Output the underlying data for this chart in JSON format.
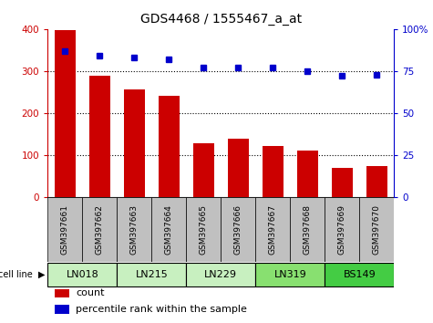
{
  "title": "GDS4468 / 1555467_a_at",
  "samples": [
    "GSM397661",
    "GSM397662",
    "GSM397663",
    "GSM397664",
    "GSM397665",
    "GSM397666",
    "GSM397667",
    "GSM397668",
    "GSM397669",
    "GSM397670"
  ],
  "counts": [
    398,
    288,
    257,
    240,
    128,
    138,
    122,
    110,
    70,
    73
  ],
  "percentile_ranks": [
    87,
    84,
    83,
    82,
    77,
    77,
    77,
    75,
    72,
    73
  ],
  "cell_lines": [
    {
      "label": "LN018",
      "start": 0,
      "end": 2,
      "color": "#c8f0c0"
    },
    {
      "label": "LN215",
      "start": 2,
      "end": 4,
      "color": "#c8f0c0"
    },
    {
      "label": "LN229",
      "start": 4,
      "end": 6,
      "color": "#c8f0c0"
    },
    {
      "label": "LN319",
      "start": 6,
      "end": 8,
      "color": "#88e070"
    },
    {
      "label": "BS149",
      "start": 8,
      "end": 10,
      "color": "#44cc44"
    }
  ],
  "bar_color": "#cc0000",
  "dot_color": "#0000cc",
  "left_ylim": [
    0,
    400
  ],
  "right_ylim": [
    0,
    100
  ],
  "left_yticks": [
    0,
    100,
    200,
    300,
    400
  ],
  "right_yticks": [
    0,
    25,
    50,
    75,
    100
  ],
  "right_yticklabels": [
    "0",
    "25",
    "50",
    "75",
    "100%"
  ],
  "grid_values": [
    100,
    200,
    300
  ],
  "background_color": "#ffffff",
  "sample_area_color": "#c0c0c0",
  "bar_width": 0.6
}
